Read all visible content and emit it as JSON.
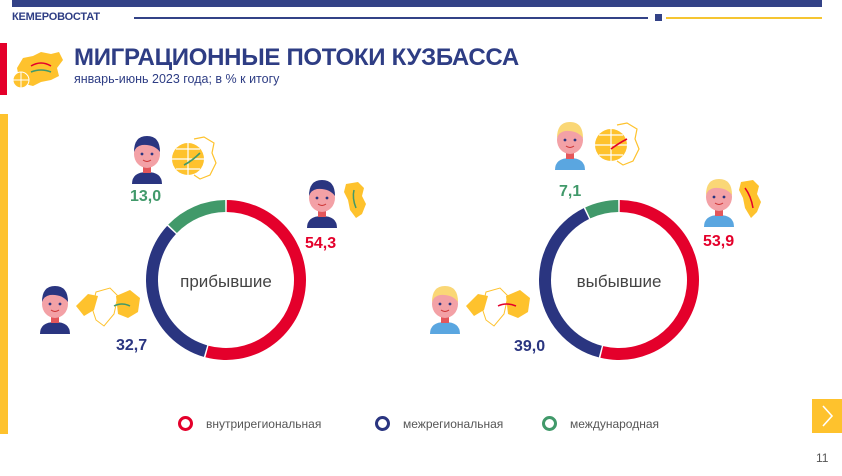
{
  "header": {
    "brand": "КЕМЕРОВОСТАТ",
    "title": "МИГРАЦИОННЫЕ ПОТОКИ КУЗБАССА",
    "subtitle": "январь-июнь 2023 года; в % к итогу"
  },
  "colors": {
    "intraregional": "#e4002b",
    "interregional": "#2a3580",
    "international": "#41996a",
    "brand_blue": "#334287",
    "accent_yellow": "#fec22d"
  },
  "chart_data": [
    {
      "type": "pie",
      "title": "прибывшие",
      "categories": [
        "внутрирегиональная",
        "межрегиональная",
        "международная"
      ],
      "values": [
        54.3,
        32.7,
        13.0
      ],
      "labels": [
        "54,3",
        "32,7",
        "13,0"
      ],
      "legend_position": "bottom",
      "style": "donut"
    },
    {
      "type": "pie",
      "title": "выбывшие",
      "categories": [
        "внутрирегиональная",
        "межрегиональная",
        "международная"
      ],
      "values": [
        53.9,
        39.0,
        7.1
      ],
      "labels": [
        "53,9",
        "39,0",
        "7,1"
      ],
      "legend_position": "bottom",
      "style": "donut"
    }
  ],
  "legend": [
    {
      "label": "внутрирегиональная",
      "color": "#e4002b"
    },
    {
      "label": "межрегиональная",
      "color": "#2a3580"
    },
    {
      "label": "международная",
      "color": "#41996a"
    }
  ],
  "icons": {
    "logo": "russia-map-globe-icon",
    "arrivals_person": "boy-dark-hair-icon",
    "departures_person": "boy-blond-hair-icon",
    "intra_map": "kuzbass-map-icon",
    "inter_map": "russia-map-icon",
    "intl_map": "globe-map-icon",
    "next": "chevron-right-icon"
  },
  "footer": {
    "page_number": "11"
  }
}
